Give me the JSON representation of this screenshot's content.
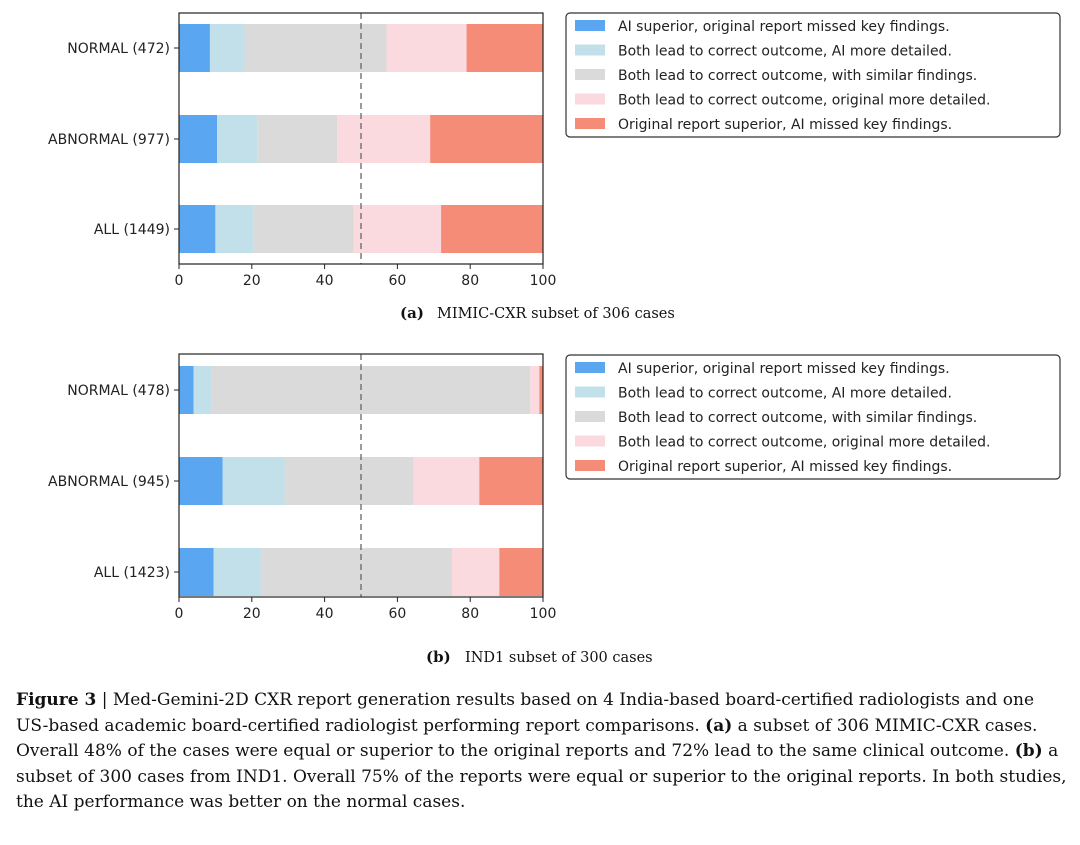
{
  "colors": {
    "ai_superior": "#5aa6f0",
    "both_ai_detailed": "#c2e0ea",
    "both_similar": "#dadada",
    "both_original_detailed": "#fadadf",
    "original_superior": "#f58c78"
  },
  "chart_data": [
    {
      "type": "bar",
      "orientation": "horizontal",
      "stacked": true,
      "panel_label": "(a)",
      "caption": "MIMIC-CXR subset of 306 cases",
      "categories": [
        "NORMAL (472)",
        "ABNORMAL (977)",
        "ALL (1449)"
      ],
      "series": [
        {
          "name": "AI superior, original report missed key findings.",
          "color_key": "ai_superior",
          "values": [
            8.5,
            10.5,
            10
          ]
        },
        {
          "name": "Both lead to correct outcome, AI more detailed.",
          "color_key": "both_ai_detailed",
          "values": [
            9.5,
            11,
            10.5
          ]
        },
        {
          "name": "Both lead to correct outcome, with similar findings.",
          "color_key": "both_similar",
          "values": [
            39,
            22,
            27.5
          ]
        },
        {
          "name": "Both lead to correct outcome, original more detailed.",
          "color_key": "both_original_detailed",
          "values": [
            22,
            25.5,
            24
          ]
        },
        {
          "name": "Original report superior, AI missed key findings.",
          "color_key": "original_superior",
          "values": [
            21,
            31,
            28
          ]
        }
      ],
      "xlim": [
        0,
        100
      ],
      "xticks": [
        0,
        20,
        40,
        60,
        80,
        100
      ],
      "reference_line": 50,
      "legend": "upper-right-outside"
    },
    {
      "type": "bar",
      "orientation": "horizontal",
      "stacked": true,
      "panel_label": "(b)",
      "caption": "IND1 subset of 300 cases",
      "categories": [
        "NORMAL (478)",
        "ABNORMAL (945)",
        "ALL (1423)"
      ],
      "series": [
        {
          "name": "AI superior, original report missed key findings.",
          "color_key": "ai_superior",
          "values": [
            4,
            12,
            9.5
          ]
        },
        {
          "name": "Both lead to correct outcome, AI more detailed.",
          "color_key": "both_ai_detailed",
          "values": [
            5,
            17,
            13
          ]
        },
        {
          "name": "Both lead to correct outcome, with similar findings.",
          "color_key": "both_similar",
          "values": [
            87.5,
            35.5,
            52.5
          ]
        },
        {
          "name": "Both lead to correct outcome, original more detailed.",
          "color_key": "both_original_detailed",
          "values": [
            2.5,
            18,
            13
          ]
        },
        {
          "name": "Original report superior, AI missed key findings.",
          "color_key": "original_superior",
          "values": [
            1,
            17.5,
            12
          ]
        }
      ],
      "xlim": [
        0,
        100
      ],
      "xticks": [
        0,
        20,
        40,
        60,
        80,
        100
      ],
      "reference_line": 50,
      "legend": "upper-right-outside"
    }
  ],
  "figure_caption": {
    "label": "Figure 3",
    "text": " | Med-Gemini-2D CXR report generation results based on 4 India-based board-certified radiologists and one US-based academic board-certified radiologist performing report comparisons. ",
    "part_a_label": "(a)",
    "part_a_text": " a subset of 306 MIMIC-CXR cases. Overall 48% of the cases were equal or superior to the original reports and 72% lead to the same clinical outcome. ",
    "part_b_label": "(b)",
    "part_b_text": " a subset of 300 cases from IND1. Overall 75% of the reports were equal or superior to the original reports. In both studies, the AI performance was better on the normal cases."
  }
}
